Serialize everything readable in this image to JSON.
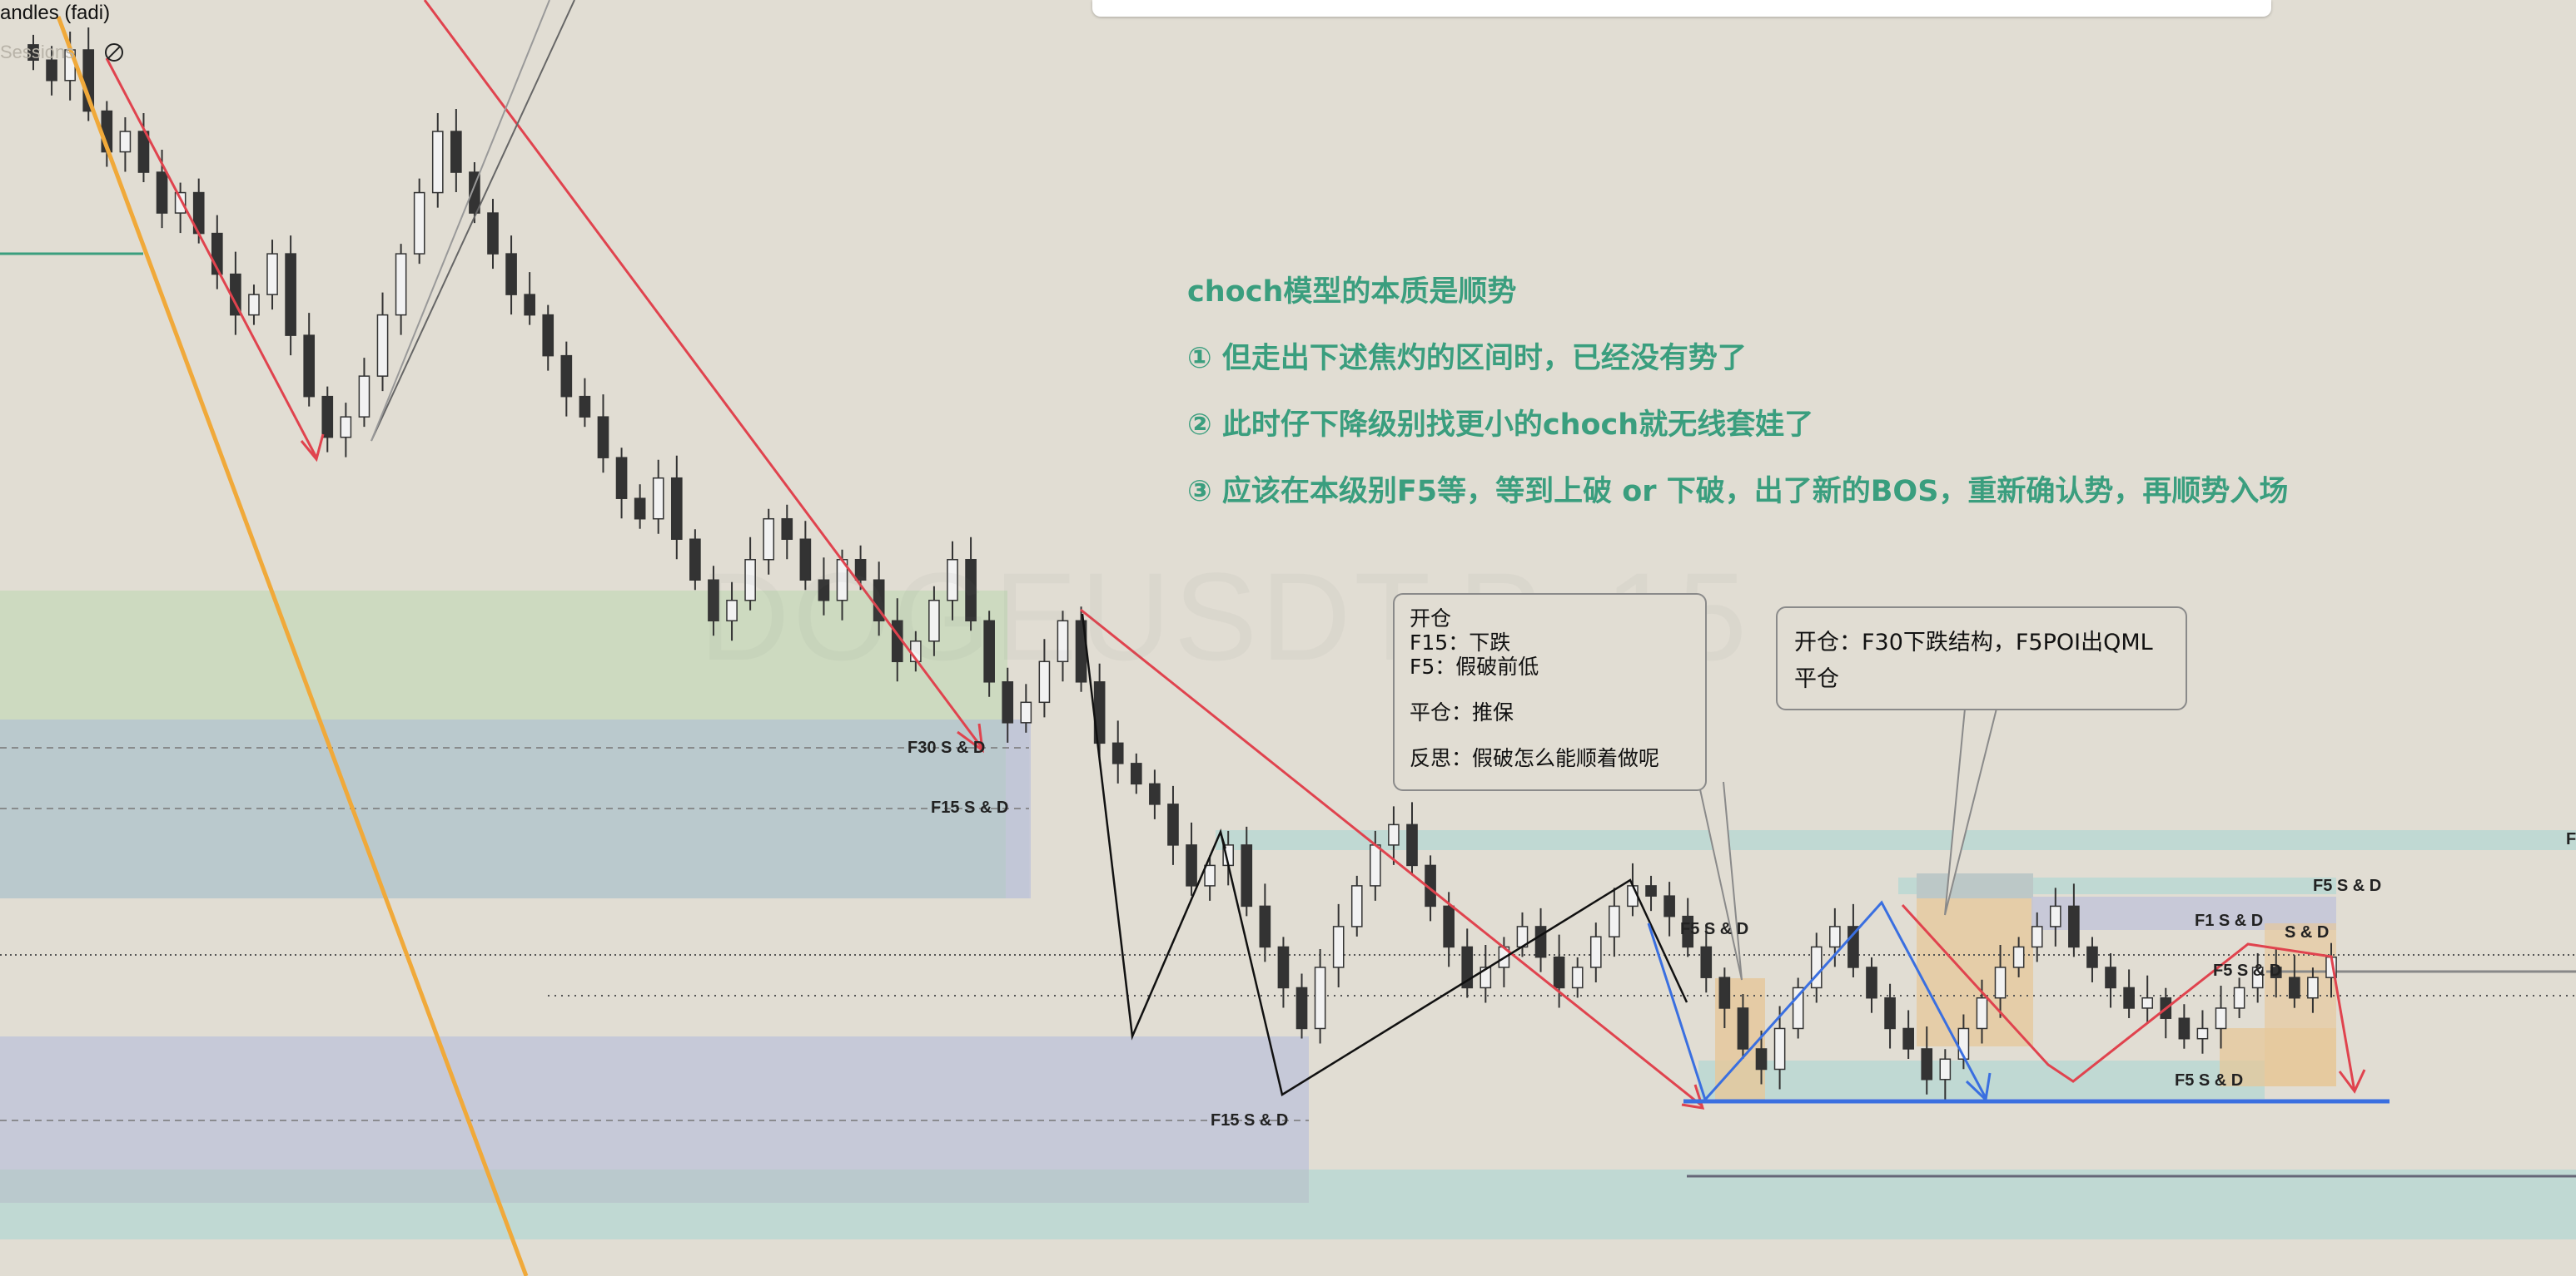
{
  "indicator": {
    "title": "andles (fadi)",
    "subtitle": "Sessions"
  },
  "watermark": "DOGEUSDT.P, 15",
  "headings": [
    "choch模型的本质是顺势",
    "① 但走出下述焦灼的区间时，已经没有势了",
    "② 此时仔下降级别找更小的choch就无线套娃了",
    "③ 应该在本级别F5等，等到上破 or 下破，出了新的BOS，重新确认势，再顺势入场"
  ],
  "callout_left": {
    "line1": "开仓",
    "line2": "F15：下跌",
    "line3": "F5：假破前低",
    "line4": "平仓：推保",
    "line5": "反思：假破怎么能顺着做呢"
  },
  "callout_right": {
    "line1": "开仓：F30下跌结构，F5POI出QML",
    "line2": "平仓"
  },
  "sd_labels": {
    "f30": "F30   S & D",
    "f15_upper": "F15   S & D",
    "f15_lower": "F15   S & D",
    "f5_mid": "F5   S & D",
    "f5_right_top": "F5   S & D",
    "f1": "F1 S & D",
    "f5_right_a": "F5   S & D",
    "f5_right_b": "S & D",
    "f5_bottom": "F5   S & D",
    "edge": "F"
  },
  "colors": {
    "background": "#e1ddd3",
    "heading": "#3a9e7e",
    "candle_down": "#333333",
    "candle_up": "#f2f2f2",
    "red_line": "#e0434e",
    "blue_line": "#3a6fe0",
    "orange_line": "#f0a93a",
    "zone_green": "#c9d9bc",
    "zone_blue": "#b6c7cc",
    "zone_purple": "#c3c6d8",
    "zone_teal": "#bcd8d3",
    "zone_orange": "#e6c79a"
  },
  "chart_data": {
    "type": "candlestick",
    "symbol": "DOGEUSDT.P",
    "timeframe": "15",
    "title": "",
    "ylim": [
      0,
      100
    ],
    "close": [
      95,
      93,
      96,
      90,
      86,
      88,
      84,
      80,
      82,
      78,
      74,
      70,
      72,
      76,
      68,
      62,
      58,
      60,
      64,
      70,
      76,
      82,
      88,
      84,
      80,
      76,
      72,
      70,
      66,
      62,
      60,
      56,
      52,
      50,
      54,
      48,
      44,
      40,
      42,
      46,
      50,
      48,
      44,
      42,
      46,
      44,
      40,
      36,
      38,
      42,
      46,
      40,
      34,
      30,
      32,
      36,
      40,
      34,
      28,
      26,
      24,
      22,
      18,
      14,
      16,
      18,
      12,
      8,
      4,
      0,
      6,
      10,
      14,
      18,
      20,
      16,
      12,
      8,
      4,
      6,
      8,
      10,
      7,
      4,
      6,
      9,
      12,
      14,
      13,
      11,
      8,
      5,
      2,
      -2,
      -4,
      0,
      4,
      8,
      10,
      6,
      3,
      0,
      -2,
      -5,
      -3,
      0,
      3,
      6,
      8,
      10,
      12,
      8,
      6,
      4,
      2,
      3,
      1,
      -1,
      0,
      2,
      4,
      6,
      5,
      3,
      5,
      7
    ]
  }
}
